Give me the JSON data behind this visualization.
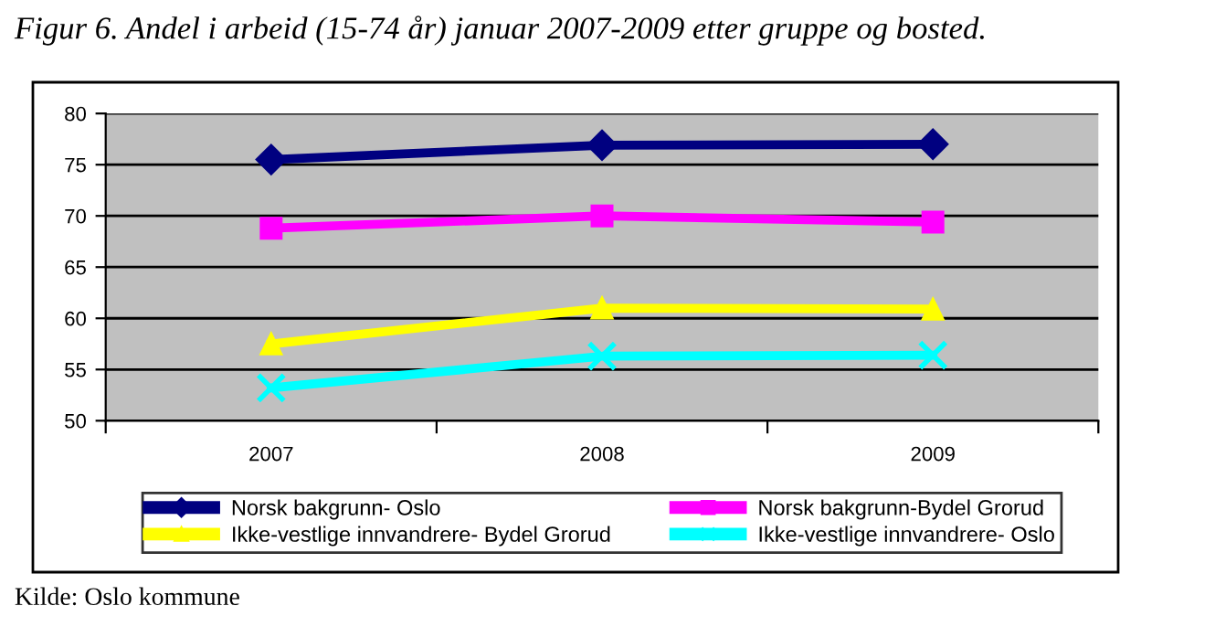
{
  "chart_data": {
    "type": "line",
    "title": "Figur 6. Andel i arbeid (15-74 år) januar 2007-2009 etter gruppe og bosted.",
    "categories": [
      "2007",
      "2008",
      "2009"
    ],
    "series": [
      {
        "name": "Norsk bakgrunn- Oslo",
        "color": "#000080",
        "marker": "diamond",
        "values": [
          75.5,
          76.9,
          77.0
        ]
      },
      {
        "name": "Norsk bakgrunn-Bydel Grorud",
        "color": "#ff00ff",
        "marker": "square",
        "values": [
          68.8,
          70.0,
          69.4
        ]
      },
      {
        "name": "Ikke-vestlige innvandrere- Bydel Grorud",
        "color": "#ffff00",
        "marker": "triangle",
        "values": [
          57.5,
          61.0,
          60.9
        ]
      },
      {
        "name": "Ikke-vestlige innvandrere- Oslo",
        "color": "#00ffff",
        "marker": "cross",
        "values": [
          53.2,
          56.3,
          56.4
        ]
      }
    ],
    "ylim": [
      50,
      80
    ],
    "yticks": [
      50,
      55,
      60,
      65,
      70,
      75,
      80
    ],
    "grid": "y",
    "legend": "bottom",
    "line_style": "solid",
    "annotations": [
      "Kilde: Oslo kommune"
    ]
  }
}
